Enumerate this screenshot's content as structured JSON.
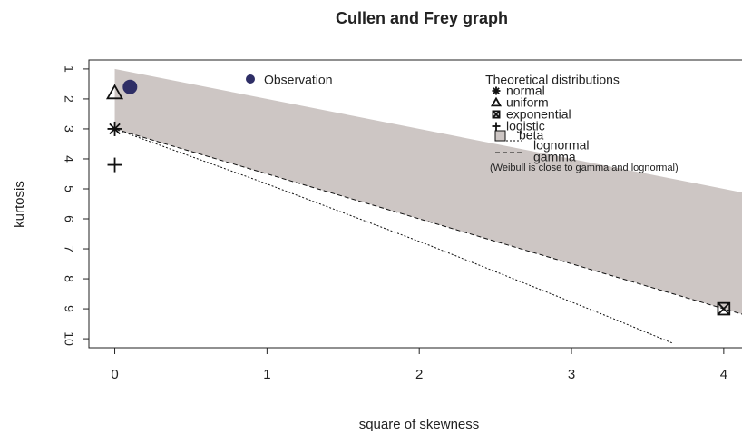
{
  "chart_data": {
    "type": "scatter",
    "title": "Cullen and Frey graph",
    "x_label": "square of skewness",
    "y_label": "kurtosis",
    "xlim": [
      -0.17,
      4.12
    ],
    "ylim": [
      10.3,
      0.7
    ],
    "xticks": [
      0,
      1,
      2,
      3,
      4
    ],
    "yticks": [
      1,
      2,
      3,
      4,
      5,
      6,
      7,
      8,
      9,
      10
    ],
    "observation": {
      "name": "Observation",
      "x": 0.1,
      "y": 1.6,
      "color": "#2e2e66"
    },
    "legend_title": "Theoretical distributions",
    "distributions": [
      {
        "name": "normal",
        "marker": "asterisk",
        "x": 0,
        "y": 3
      },
      {
        "name": "uniform",
        "marker": "triangle",
        "x": 0,
        "y": 1.8
      },
      {
        "name": "exponential",
        "marker": "boxed-x",
        "x": 4,
        "y": 9
      },
      {
        "name": "logistic",
        "marker": "plus",
        "x": 0,
        "y": 4.2
      },
      {
        "name": "beta",
        "marker": "square",
        "color": "#cdc6c4",
        "region_x": [
          0,
          4.12,
          4.12,
          0
        ],
        "region_y": [
          1,
          5.12,
          9.18,
          3
        ]
      },
      {
        "name": "lognormal",
        "line": "dotted",
        "x": [
          0,
          0.96,
          2.05,
          3.27,
          3.66
        ],
        "y": [
          3,
          4.76,
          6.85,
          9.32,
          10.14
        ]
      },
      {
        "name": "gamma",
        "line": "dashed",
        "x": [
          0,
          4.12
        ],
        "y": [
          3,
          9.18
        ]
      }
    ],
    "note": "(Weibull is close to gamma and lognormal)"
  }
}
